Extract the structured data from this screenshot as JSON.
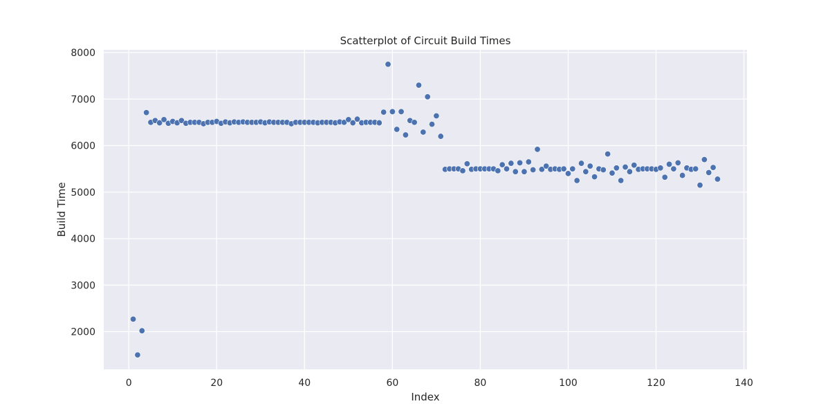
{
  "chart_data": {
    "type": "scatter",
    "title": "Scatterplot of Circuit Build Times",
    "xlabel": "Index",
    "ylabel": "Build Time",
    "xlim": [
      -5.7,
      140.7
    ],
    "ylim": [
      1190,
      8060
    ],
    "xticks": [
      0,
      20,
      40,
      60,
      80,
      100,
      120,
      140
    ],
    "yticks": [
      2000,
      3000,
      4000,
      5000,
      6000,
      7000,
      8000
    ],
    "grid": true,
    "colors": {
      "background": "#eaeaf2",
      "grid": "#ffffff",
      "point": "#4c72b0",
      "point_edge": "#ffffff"
    },
    "x": [
      1,
      2,
      3,
      4,
      5,
      6,
      7,
      8,
      9,
      10,
      11,
      12,
      13,
      14,
      15,
      16,
      17,
      18,
      19,
      20,
      21,
      22,
      23,
      24,
      25,
      26,
      27,
      28,
      29,
      30,
      31,
      32,
      33,
      34,
      35,
      36,
      37,
      38,
      39,
      40,
      41,
      42,
      43,
      44,
      45,
      46,
      47,
      48,
      49,
      50,
      51,
      52,
      53,
      54,
      55,
      56,
      57,
      58,
      59,
      60,
      61,
      62,
      63,
      64,
      65,
      66,
      67,
      68,
      69,
      70,
      71,
      72,
      73,
      74,
      75,
      76,
      77,
      78,
      79,
      80,
      81,
      82,
      83,
      84,
      85,
      86,
      87,
      88,
      89,
      90,
      91,
      92,
      93,
      94,
      95,
      96,
      97,
      98,
      99,
      100,
      101,
      102,
      103,
      104,
      105,
      106,
      107,
      108,
      109,
      110,
      111,
      112,
      113,
      114,
      115,
      116,
      117,
      118,
      119,
      120,
      121,
      122,
      123,
      124,
      125,
      126,
      127,
      128,
      129,
      130,
      131,
      132,
      133,
      134
    ],
    "y": [
      2270,
      1500,
      2020,
      6710,
      6500,
      6540,
      6490,
      6560,
      6480,
      6520,
      6490,
      6540,
      6480,
      6500,
      6500,
      6500,
      6470,
      6500,
      6500,
      6520,
      6480,
      6510,
      6490,
      6510,
      6500,
      6510,
      6500,
      6500,
      6500,
      6510,
      6490,
      6510,
      6500,
      6500,
      6500,
      6500,
      6470,
      6500,
      6500,
      6500,
      6500,
      6500,
      6490,
      6500,
      6500,
      6500,
      6490,
      6510,
      6500,
      6560,
      6490,
      6570,
      6490,
      6500,
      6500,
      6500,
      6490,
      6720,
      7750,
      6730,
      6350,
      6730,
      6230,
      6540,
      6500,
      7300,
      6290,
      7050,
      6460,
      6640,
      6200,
      5490,
      5500,
      5500,
      5500,
      5460,
      5610,
      5490,
      5500,
      5500,
      5500,
      5500,
      5500,
      5460,
      5590,
      5500,
      5620,
      5440,
      5630,
      5440,
      5650,
      5480,
      5920,
      5490,
      5560,
      5490,
      5500,
      5490,
      5500,
      5400,
      5500,
      5250,
      5620,
      5440,
      5560,
      5330,
      5500,
      5480,
      5820,
      5410,
      5520,
      5250,
      5540,
      5440,
      5580,
      5490,
      5500,
      5500,
      5500,
      5490,
      5520,
      5320,
      5600,
      5500,
      5630,
      5360,
      5520,
      5490,
      5500,
      5150,
      5700,
      5420,
      5530,
      5280
    ]
  }
}
